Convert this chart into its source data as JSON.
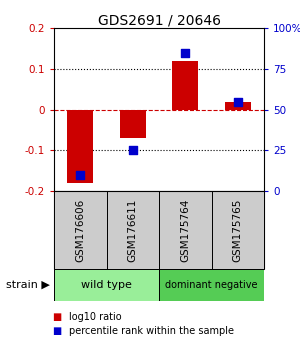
{
  "title": "GDS2691 / 20646",
  "samples": [
    "GSM176606",
    "GSM176611",
    "GSM175764",
    "GSM175765"
  ],
  "log10_ratio": [
    -0.18,
    -0.07,
    0.12,
    0.02
  ],
  "percentile_rank": [
    10,
    25,
    85,
    55
  ],
  "ylim_left": [
    -0.2,
    0.2
  ],
  "ylim_right": [
    0,
    100
  ],
  "yticks_left": [
    -0.2,
    -0.1,
    0,
    0.1,
    0.2
  ],
  "yticks_right": [
    0,
    25,
    50,
    75,
    100
  ],
  "ytick_labels_right": [
    "0",
    "25",
    "50",
    "75",
    "100%"
  ],
  "bar_color": "#cc0000",
  "dot_color": "#0000cc",
  "zero_line_color": "#cc0000",
  "groups": [
    {
      "label": "wild type",
      "color": "#99ee99"
    },
    {
      "label": "dominant negative",
      "color": "#55cc55"
    }
  ],
  "strain_label": "strain",
  "legend_items": [
    {
      "color": "#cc0000",
      "label": "log10 ratio"
    },
    {
      "color": "#0000cc",
      "label": "percentile rank within the sample"
    }
  ],
  "background_color": "#ffffff",
  "sample_box_color": "#cccccc",
  "title_color": "#000000"
}
